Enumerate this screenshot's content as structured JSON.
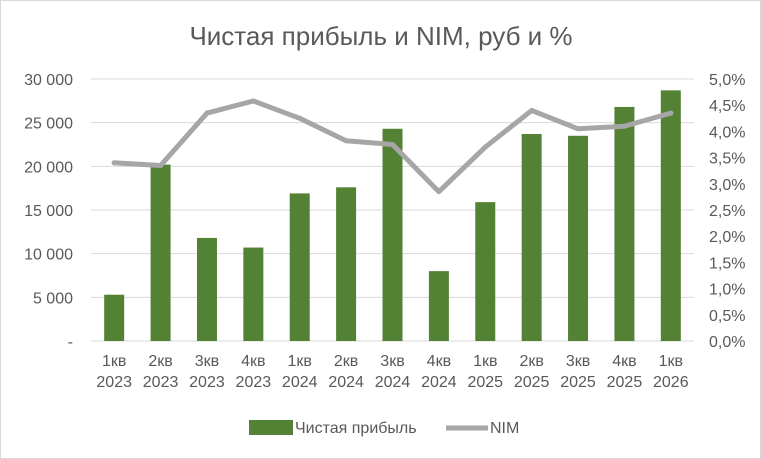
{
  "chart_data": {
    "type": "bar",
    "title": "Чистая прибыль и NIM, руб и %",
    "categories": [
      [
        "1кв",
        "2023"
      ],
      [
        "2кв",
        "2023"
      ],
      [
        "3кв",
        "2023"
      ],
      [
        "4кв",
        "2023"
      ],
      [
        "1кв",
        "2024"
      ],
      [
        "2кв",
        "2024"
      ],
      [
        "3кв",
        "2024"
      ],
      [
        "4кв",
        "2024"
      ],
      [
        "1кв",
        "2025"
      ],
      [
        "2кв",
        "2025"
      ],
      [
        "3кв",
        "2025"
      ],
      [
        "4кв",
        "2025"
      ],
      [
        "1кв",
        "2026"
      ]
    ],
    "series": [
      {
        "name": "Чистая прибыль",
        "type": "bar",
        "axis": "left",
        "color": "#548235",
        "values": [
          5300,
          20200,
          11800,
          10700,
          16900,
          17600,
          24300,
          8000,
          15900,
          23700,
          23500,
          26800,
          28700
        ]
      },
      {
        "name": "NIM",
        "type": "line",
        "axis": "right",
        "color": "#a6a6a6",
        "values": [
          3.4,
          3.35,
          4.35,
          4.58,
          4.25,
          3.82,
          3.75,
          2.85,
          3.7,
          4.4,
          4.05,
          4.1,
          4.35
        ]
      }
    ],
    "y_left": {
      "ylim": [
        0,
        30000
      ],
      "ticks": [
        0,
        5000,
        10000,
        15000,
        20000,
        25000,
        30000
      ],
      "tick_labels": [
        "-",
        "5 000",
        "10 000",
        "15 000",
        "20 000",
        "25 000",
        "30 000"
      ]
    },
    "y_right": {
      "ylim": [
        0,
        5
      ],
      "ticks": [
        0,
        0.5,
        1,
        1.5,
        2,
        2.5,
        3,
        3.5,
        4,
        4.5,
        5
      ],
      "tick_labels": [
        "0,0%",
        "0,5%",
        "1,0%",
        "1,5%",
        "2,0%",
        "2,5%",
        "3,0%",
        "3,5%",
        "4,0%",
        "4,5%",
        "5,0%"
      ]
    },
    "grid": true,
    "legend": "bottom",
    "gridline_color": "#d9d9d9",
    "text_color": "#595959"
  }
}
